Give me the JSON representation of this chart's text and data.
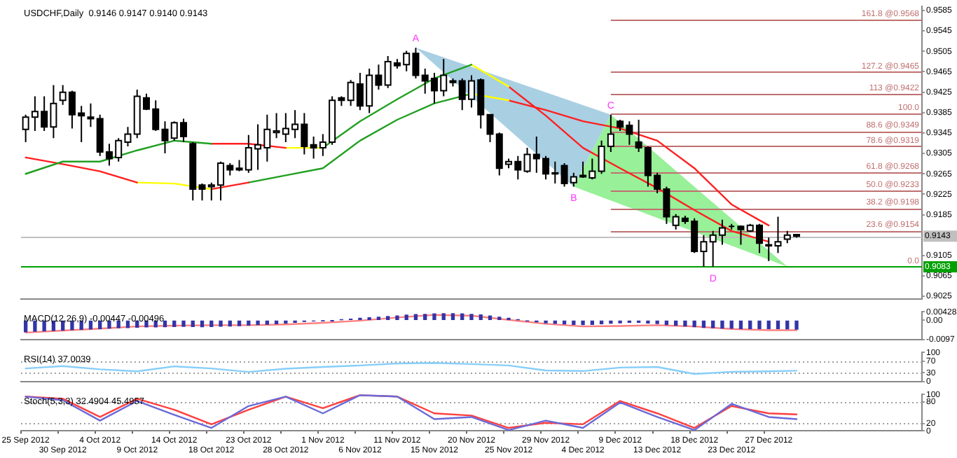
{
  "chart_data": [
    {
      "type": "candlestick",
      "title": "USDCHF,Daily  0.9146 0.9147 0.9140 0.9143",
      "tick_labels": "y",
      "categories": [
        "25 Sep 2012",
        null,
        null,
        null,
        "30 Sep 2012",
        null,
        null,
        null,
        "4 Oct 2012",
        null,
        null,
        null,
        "9 Oct 2012",
        null,
        null,
        null,
        "14 Oct 2012",
        null,
        null,
        null,
        "18 Oct 2012",
        null,
        null,
        null,
        "23 Oct 2012",
        null,
        null,
        null,
        "28 Oct 2012",
        null,
        null,
        null,
        "1 Nov 2012",
        null,
        null,
        null,
        "6 Nov 2012",
        null,
        null,
        null,
        "11 Nov 2012",
        null,
        null,
        null,
        "15 Nov 2012",
        null,
        null,
        null,
        "20 Nov 2012",
        null,
        null,
        null,
        "25 Nov 2012",
        null,
        null,
        null,
        "29 Nov 2012",
        null,
        null,
        null,
        "4 Dec 2012",
        null,
        null,
        null,
        "9 Dec 2012",
        null,
        null,
        null,
        "13 Dec 2012",
        null,
        null,
        null,
        "18 Dec 2012",
        null,
        null,
        null,
        "23 Dec 2012",
        null,
        null,
        null,
        "27 Dec 2012",
        null,
        null,
        null,
        null,
        null,
        null,
        null,
        null,
        null,
        null,
        null,
        null,
        null,
        null,
        null,
        null
      ],
      "ohlc": [
        [
          0.9352,
          0.9381,
          0.9327,
          0.9376
        ],
        [
          0.9376,
          0.9417,
          0.9349,
          0.9387
        ],
        [
          0.9387,
          0.9417,
          0.9349,
          0.9357
        ],
        [
          0.9357,
          0.9439,
          0.9335,
          0.9403
        ],
        [
          0.9409,
          0.9439,
          0.94,
          0.9425
        ],
        [
          0.9425,
          0.9428,
          0.9354,
          0.9381
        ],
        [
          0.9384,
          0.9398,
          0.9327,
          0.9379
        ],
        [
          0.9376,
          0.9403,
          0.9357,
          0.9373
        ],
        [
          0.9373,
          0.9381,
          0.93,
          0.9308
        ],
        [
          0.9308,
          0.9324,
          0.9281,
          0.9295
        ],
        [
          0.9297,
          0.9335,
          0.9289,
          0.933
        ],
        [
          0.9327,
          0.9357,
          0.9319,
          0.9343
        ],
        [
          0.9343,
          0.943,
          0.9335,
          0.9417
        ],
        [
          0.9414,
          0.9422,
          0.939,
          0.9392
        ],
        [
          0.9392,
          0.9409,
          0.9349,
          0.9352
        ],
        [
          0.9352,
          0.9368,
          0.9305,
          0.933
        ],
        [
          0.9335,
          0.9368,
          0.933,
          0.9365
        ],
        [
          0.9365,
          0.9373,
          0.9327,
          0.9338
        ],
        [
          0.9324,
          0.9327,
          0.9213,
          0.9235
        ],
        [
          0.9243,
          0.9246,
          0.9213,
          0.9235
        ],
        [
          0.924,
          0.9248,
          0.9213,
          0.9243
        ],
        [
          0.9243,
          0.9289,
          0.9213,
          0.9286
        ],
        [
          0.9281,
          0.9286,
          0.9262,
          0.9273
        ],
        [
          0.9276,
          0.9292,
          0.927,
          0.9273
        ],
        [
          0.9273,
          0.9341,
          0.9267,
          0.9316
        ],
        [
          0.9314,
          0.9362,
          0.9273,
          0.9322
        ],
        [
          0.9316,
          0.9381,
          0.9289,
          0.9352
        ],
        [
          0.9346,
          0.9384,
          0.9335,
          0.9349
        ],
        [
          0.9343,
          0.9384,
          0.9327,
          0.9354
        ],
        [
          0.9352,
          0.939,
          0.9335,
          0.9362
        ],
        [
          0.9362,
          0.9384,
          0.9303,
          0.9319
        ],
        [
          0.9322,
          0.9338,
          0.9295,
          0.9316
        ],
        [
          0.9316,
          0.9343,
          0.93,
          0.9327
        ],
        [
          0.9327,
          0.9417,
          0.9322,
          0.9409
        ],
        [
          0.9414,
          0.9417,
          0.9398,
          0.9409
        ],
        [
          0.9409,
          0.9449,
          0.9398,
          0.9444
        ],
        [
          0.9441,
          0.9463,
          0.939,
          0.9398
        ],
        [
          0.9398,
          0.9471,
          0.9384,
          0.9458
        ],
        [
          0.9458,
          0.9479,
          0.943,
          0.9439
        ],
        [
          0.9439,
          0.9496,
          0.9433,
          0.9485
        ],
        [
          0.9482,
          0.949,
          0.9471,
          0.9477
        ],
        [
          0.9479,
          0.9506,
          0.9466,
          0.9501
        ],
        [
          0.9501,
          0.9512,
          0.9452,
          0.9458
        ],
        [
          0.9458,
          0.9471,
          0.9422,
          0.9447
        ],
        [
          0.9452,
          0.9463,
          0.9403,
          0.9428
        ],
        [
          0.9428,
          0.949,
          0.9417,
          0.9458
        ],
        [
          0.9447,
          0.9452,
          0.9436,
          0.9444
        ],
        [
          0.9447,
          0.9452,
          0.939,
          0.9411
        ],
        [
          0.9411,
          0.9458,
          0.9395,
          0.9447
        ],
        [
          0.9449,
          0.9452,
          0.9354,
          0.9381
        ],
        [
          0.9381,
          0.9381,
          0.9327,
          0.9343
        ],
        [
          0.9343,
          0.9346,
          0.9262,
          0.9276
        ],
        [
          0.9284,
          0.9295,
          0.9276,
          0.9289
        ],
        [
          0.9289,
          0.93,
          0.9254,
          0.9273
        ],
        [
          0.927,
          0.9316,
          0.9267,
          0.9303
        ],
        [
          0.9303,
          0.9338,
          0.9267,
          0.9295
        ],
        [
          0.9295,
          0.93,
          0.9254,
          0.9265
        ],
        [
          0.9267,
          0.9289,
          0.9246,
          0.9265
        ],
        [
          0.9281,
          0.9286,
          0.924,
          0.9246
        ],
        [
          0.9248,
          0.9267,
          0.924,
          0.9259
        ],
        [
          0.9259,
          0.9289,
          0.9257,
          0.9262
        ],
        [
          0.9257,
          0.9295,
          0.9254,
          0.927
        ],
        [
          0.927,
          0.933,
          0.9265,
          0.9319
        ],
        [
          0.9319,
          0.9381,
          0.9308,
          0.9343
        ],
        [
          0.9368,
          0.9371,
          0.9349,
          0.9357
        ],
        [
          0.936,
          0.9368,
          0.9322,
          0.9343
        ],
        [
          0.9327,
          0.9371,
          0.9308,
          0.9316
        ],
        [
          0.9316,
          0.9319,
          0.924,
          0.9262
        ],
        [
          0.9262,
          0.9267,
          0.9227,
          0.9235
        ],
        [
          0.9235,
          0.924,
          0.9167,
          0.9181
        ],
        [
          0.9164,
          0.9186,
          0.9156,
          0.9181
        ],
        [
          0.9178,
          0.9183,
          0.9167,
          0.9172
        ],
        [
          0.9172,
          0.9178,
          0.911,
          0.9113
        ],
        [
          0.9113,
          0.9145,
          0.9083,
          0.9132
        ],
        [
          0.9132,
          0.9153,
          0.9083,
          0.9145
        ],
        [
          0.9145,
          0.9175,
          0.9126,
          0.9159
        ],
        [
          0.9162,
          0.9167,
          0.9156,
          0.9162
        ],
        [
          0.9162,
          0.9164,
          0.9126,
          0.9156
        ],
        [
          0.9153,
          0.9167,
          0.9151,
          0.9164
        ],
        [
          0.9164,
          0.9167,
          0.911,
          0.9129
        ],
        [
          0.9126,
          0.914,
          0.9094,
          0.9124
        ],
        [
          0.9124,
          0.9181,
          0.911,
          0.9132
        ],
        [
          0.9137,
          0.9153,
          0.9129,
          0.9145
        ],
        [
          0.9146,
          0.9147,
          0.914,
          0.9143
        ],
        null,
        null,
        null,
        null,
        null,
        null,
        null,
        null,
        null,
        null,
        null,
        null,
        null
      ],
      "series": [
        {
          "type": "line",
          "color": "#22a022",
          "x": [
            "25 Sep 2012",
            "30 Sep 2012",
            "4 Oct 2012",
            "9 Oct 2012",
            "14 Oct 2012",
            "18 Oct 2012"
          ],
          "values": [
            0.9265,
            0.9289,
            0.9289,
            0.9311,
            0.933,
            0.9324
          ]
        },
        {
          "type": "line",
          "color": "#ff2020",
          "x": [
            "18 Oct 2012",
            "23 Oct 2012",
            "28 Oct 2012"
          ],
          "values": [
            0.9324,
            0.9324,
            0.9316
          ]
        },
        {
          "type": "line",
          "color": "#ffff00",
          "x": [
            "28 Oct 2012",
            "1 Nov 2012"
          ],
          "values": [
            0.9316,
            0.9316
          ]
        },
        {
          "type": "line",
          "color": "#22a022",
          "x": [
            "1 Nov 2012",
            "6 Nov 2012",
            "11 Nov 2012",
            "15 Nov 2012",
            "20 Nov 2012"
          ],
          "values": [
            0.9316,
            0.9368,
            0.9411,
            0.9452,
            0.9479
          ]
        },
        {
          "type": "line",
          "color": "#ffff00",
          "x": [
            "20 Nov 2012",
            "25 Nov 2012"
          ],
          "values": [
            0.9479,
            0.9436
          ]
        },
        {
          "type": "line",
          "color": "#ff2020",
          "x": [
            "25 Nov 2012",
            "29 Nov 2012",
            "4 Dec 2012",
            "9 Dec 2012",
            "13 Dec 2012",
            "18 Dec 2012",
            "23 Dec 2012",
            "27 Dec 2012"
          ],
          "values": [
            0.9436,
            0.9379,
            0.9316,
            0.9276,
            0.9237,
            0.9194,
            0.9153,
            0.9132
          ]
        },
        {
          "type": "line",
          "color": "#ff2020",
          "x": [
            "25 Sep 2012",
            "30 Sep 2012",
            "4 Oct 2012",
            "9 Oct 2012"
          ],
          "values": [
            0.9297,
            0.9284,
            0.927,
            0.9248
          ]
        },
        {
          "type": "line",
          "color": "#ffff00",
          "x": [
            "9 Oct 2012",
            "14 Oct 2012",
            "18 Oct 2012"
          ],
          "values": [
            0.9248,
            0.9246,
            0.9235
          ]
        },
        {
          "type": "line",
          "color": "#ff2020",
          "x": [
            "18 Oct 2012",
            "23 Oct 2012"
          ],
          "values": [
            0.9235,
            0.9248
          ]
        },
        {
          "type": "line",
          "color": "#22a022",
          "x": [
            "23 Oct 2012",
            "28 Oct 2012",
            "1 Nov 2012",
            "6 Nov 2012",
            "11 Nov 2012",
            "15 Nov 2012",
            "20 Nov 2012"
          ],
          "values": [
            0.9248,
            0.9262,
            0.9276,
            0.933,
            0.9371,
            0.9403,
            0.9422
          ]
        },
        {
          "type": "line",
          "color": "#ffff00",
          "x": [
            "20 Nov 2012",
            "25 Nov 2012"
          ],
          "values": [
            0.9422,
            0.9409
          ]
        },
        {
          "type": "line",
          "color": "#ff2020",
          "x": [
            "25 Nov 2012",
            "29 Nov 2012",
            "4 Dec 2012",
            "9 Dec 2012",
            "13 Dec 2012",
            "18 Dec 2012",
            "23 Dec 2012",
            "27 Dec 2012"
          ],
          "values": [
            0.9409,
            0.939,
            0.9368,
            0.9354,
            0.933,
            0.9276,
            0.9205,
            0.9164
          ]
        }
      ],
      "ylim": [
        0.902,
        0.9593
      ],
      "yticks": [
        0.9585,
        0.9545,
        0.9505,
        0.9465,
        0.9425,
        0.9385,
        0.9345,
        0.9305,
        0.9265,
        0.9225,
        0.9185,
        0.9105,
        0.9065,
        0.9025
      ],
      "ref_lines": [
        {
          "axis": "y",
          "value": 0.9568,
          "label": "161.8 @0.9568",
          "color": "#c07070"
        },
        {
          "axis": "y",
          "value": 0.9465,
          "label": "127.2 @0.9465",
          "color": "#c07070"
        },
        {
          "axis": "y",
          "value": 0.9422,
          "label": "113 @0.9422",
          "color": "#c07070"
        },
        {
          "axis": "y",
          "value": 0.9384,
          "color": "#c07070"
        },
        {
          "axis": "y",
          "value": 0.9349,
          "label": "88.6 @0.9349",
          "color": "#c07070"
        },
        {
          "axis": "y",
          "value": 0.9319,
          "label": "78.6 @0.9319",
          "color": "#c07070"
        },
        {
          "axis": "y",
          "value": 0.9268,
          "label": "61.8 @0.9268",
          "color": "#c07070"
        },
        {
          "axis": "y",
          "value": 0.9233,
          "label": "50.0 @0.9233",
          "color": "#c07070"
        },
        {
          "axis": "y",
          "value": 0.9198,
          "label": "38.2 @0.9198",
          "color": "#c07070"
        },
        {
          "axis": "y",
          "value": 0.9154,
          "label": "23.6 @0.9154",
          "color": "#c07070"
        },
        {
          "axis": "y",
          "value": 0.9143,
          "label": "0.9143",
          "color": "#c0c0c0"
        },
        {
          "axis": "y",
          "value": 0.9083,
          "label": "0.9083",
          "color": "#00a000"
        }
      ],
      "annotations": [
        "A",
        "B",
        {
          "text": "C",
          "y": 0.9381
        },
        "D",
        {
          "text": "100.0",
          "y": 0.9384
        },
        {
          "text": "0.0",
          "y": 0.9083
        }
      ]
    },
    {
      "type": "bar",
      "title": "MACD(12,26,9) -0.00447 -0.00496",
      "tick_labels": "y",
      "categories": [
        "25 Sep 2012",
        null,
        null,
        null,
        "30 Sep 2012",
        null,
        null,
        null,
        "4 Oct 2012",
        null,
        null,
        null,
        "9 Oct 2012",
        null,
        null,
        null,
        "14 Oct 2012",
        null,
        null,
        null,
        "18 Oct 2012",
        null,
        null,
        null,
        "23 Oct 2012",
        null,
        null,
        null,
        "28 Oct 2012",
        null,
        null,
        null,
        "1 Nov 2012",
        null,
        null,
        null,
        "6 Nov 2012",
        null,
        null,
        null,
        "11 Nov 2012",
        null,
        null,
        null,
        "15 Nov 2012",
        null,
        null,
        null,
        "20 Nov 2012",
        null,
        null,
        null,
        "25 Nov 2012",
        null,
        null,
        null,
        "29 Nov 2012",
        null,
        null,
        null,
        "4 Dec 2012",
        null,
        null,
        null,
        "9 Dec 2012",
        null,
        null,
        null,
        "13 Dec 2012",
        null,
        null,
        null,
        "18 Dec 2012",
        null,
        null,
        null,
        "23 Dec 2012",
        null,
        null,
        null,
        "27 Dec 2012",
        null,
        null,
        null,
        null,
        null,
        null,
        null,
        null,
        null,
        null,
        null,
        null,
        null,
        null,
        null,
        null
      ],
      "series": [
        {
          "type": "bar",
          "color": "#3434a8",
          "values": [
            -0.0058,
            -0.0056,
            -0.0054,
            -0.0052,
            -0.005,
            -0.0048,
            -0.0046,
            -0.0044,
            -0.0042,
            -0.004,
            -0.0038,
            -0.0037,
            -0.0035,
            -0.0034,
            -0.0034,
            -0.0033,
            -0.0032,
            -0.0031,
            -0.0032,
            -0.0033,
            -0.0032,
            -0.003,
            -0.0029,
            -0.0027,
            -0.0025,
            -0.0022,
            -0.002,
            -0.0018,
            -0.0014,
            -0.0011,
            -0.0006,
            -0.0004,
            -0.0002,
            -0.0001,
            0.0003,
            0.0006,
            0.001,
            0.0013,
            0.0016,
            0.0019,
            0.0022,
            0.0026,
            0.0029,
            0.003,
            0.0032,
            0.0033,
            0.0033,
            0.0032,
            0.003,
            0.0027,
            0.0022,
            0.0016,
            0.001,
            0.0003,
            -0.0003,
            -0.0008,
            -0.0013,
            -0.0016,
            -0.0019,
            -0.0021,
            -0.0022,
            -0.0021,
            -0.0018,
            -0.0015,
            -0.0013,
            -0.0011,
            -0.0011,
            -0.0014,
            -0.0017,
            -0.0022,
            -0.0026,
            -0.0029,
            -0.0033,
            -0.0036,
            -0.0038,
            -0.004,
            -0.0041,
            -0.0042,
            -0.0042,
            -0.0042,
            -0.0042,
            -0.0042,
            -0.0043,
            -0.0045,
            null,
            null,
            null,
            null,
            null,
            null,
            null,
            null,
            null,
            null,
            null,
            null,
            null
          ]
        },
        {
          "type": "line",
          "color": "#ff8080",
          "values": [
            -0.0062,
            null,
            null,
            null,
            -0.0052,
            null,
            null,
            null,
            -0.0042,
            null,
            null,
            null,
            -0.0031,
            null,
            null,
            null,
            -0.0027,
            null,
            null,
            null,
            -0.0025,
            null,
            null,
            null,
            -0.0025,
            null,
            null,
            null,
            -0.0021,
            null,
            null,
            null,
            -0.0013,
            null,
            null,
            null,
            -0.0002,
            null,
            null,
            null,
            0.0014,
            null,
            null,
            null,
            0.0027,
            null,
            null,
            null,
            0.0023,
            null,
            null,
            null,
            0.0002,
            null,
            null,
            null,
            -0.0018,
            null,
            null,
            null,
            -0.0031,
            null,
            null,
            null,
            -0.0029,
            null,
            null,
            null,
            -0.0025,
            null,
            null,
            null,
            -0.0031,
            null,
            null,
            null,
            -0.0044,
            null,
            null,
            null,
            -0.005,
            null,
            null,
            -0.005,
            null,
            null,
            null,
            null,
            null,
            null,
            null,
            null,
            null,
            null,
            null,
            null,
            null
          ]
        }
      ],
      "ylim": [
        -0.0097,
        0.00428
      ],
      "yticks": [
        0.00428,
        {
          "value": 0,
          "label": "0.00"
        },
        -0.0097
      ]
    },
    {
      "type": "line",
      "title": "RSI(14) 37.0039",
      "tick_labels": "y",
      "categories": [
        "25 Sep 2012",
        null,
        null,
        null,
        "30 Sep 2012",
        null,
        null,
        null,
        "4 Oct 2012",
        null,
        null,
        null,
        "9 Oct 2012",
        null,
        null,
        null,
        "14 Oct 2012",
        null,
        null,
        null,
        "18 Oct 2012",
        null,
        null,
        null,
        "23 Oct 2012",
        null,
        null,
        null,
        "28 Oct 2012",
        null,
        null,
        null,
        "1 Nov 2012",
        null,
        null,
        null,
        "6 Nov 2012",
        null,
        null,
        null,
        "11 Nov 2012",
        null,
        null,
        null,
        "15 Nov 2012",
        null,
        null,
        null,
        "20 Nov 2012",
        null,
        null,
        null,
        "25 Nov 2012",
        null,
        null,
        null,
        "29 Nov 2012",
        null,
        null,
        null,
        "4 Dec 2012",
        null,
        null,
        null,
        "9 Dec 2012",
        null,
        null,
        null,
        "13 Dec 2012",
        null,
        null,
        null,
        "18 Dec 2012",
        null,
        null,
        null,
        "23 Dec 2012",
        null,
        null,
        null,
        "27 Dec 2012",
        null,
        null,
        null,
        null,
        null,
        null,
        null,
        null,
        null,
        null,
        null,
        null,
        null,
        null,
        null,
        null
      ],
      "series": [
        {
          "type": "line",
          "color": "#87cefa",
          "values": [
            45,
            null,
            null,
            null,
            53,
            null,
            null,
            null,
            42,
            null,
            null,
            null,
            35,
            null,
            null,
            null,
            52,
            null,
            null,
            null,
            45,
            null,
            null,
            null,
            33,
            null,
            null,
            null,
            44,
            null,
            null,
            null,
            50,
            null,
            null,
            null,
            55,
            null,
            null,
            null,
            62,
            null,
            null,
            null,
            64,
            null,
            null,
            null,
            60,
            null,
            null,
            null,
            55,
            null,
            null,
            null,
            38,
            null,
            null,
            null,
            36,
            null,
            null,
            null,
            48,
            null,
            null,
            null,
            50,
            null,
            null,
            null,
            26,
            null,
            null,
            null,
            33,
            null,
            null,
            null,
            35,
            null,
            null,
            37,
            null,
            null,
            null,
            null,
            null,
            null,
            null,
            null,
            null,
            null,
            null,
            null,
            null
          ]
        }
      ],
      "ylim": [
        0,
        100
      ],
      "yticks": [
        100,
        70,
        30,
        0
      ],
      "ref_lines": [
        {
          "axis": "y",
          "value": 70,
          "color": "#a0a0a0",
          "line_style": "dotted"
        },
        {
          "axis": "y",
          "value": 30,
          "color": "#a0a0a0",
          "line_style": "dotted"
        }
      ]
    },
    {
      "type": "line",
      "title": "Stoch(5,3,3) 32.4904 45.4957",
      "categories": [
        "25 Sep 2012",
        null,
        null,
        null,
        "30 Sep 2012",
        null,
        null,
        null,
        "4 Oct 2012",
        null,
        null,
        null,
        "9 Oct 2012",
        null,
        null,
        null,
        "14 Oct 2012",
        null,
        null,
        null,
        "18 Oct 2012",
        null,
        null,
        null,
        "23 Oct 2012",
        null,
        null,
        null,
        "28 Oct 2012",
        null,
        null,
        null,
        "1 Nov 2012",
        null,
        null,
        null,
        "6 Nov 2012",
        null,
        null,
        null,
        "11 Nov 2012",
        null,
        null,
        null,
        "15 Nov 2012",
        null,
        null,
        null,
        "20 Nov 2012",
        null,
        null,
        null,
        "25 Nov 2012",
        null,
        null,
        null,
        "29 Nov 2012",
        null,
        null,
        null,
        "4 Dec 2012",
        null,
        null,
        null,
        "9 Dec 2012",
        null,
        null,
        null,
        "13 Dec 2012",
        null,
        null,
        null,
        "18 Dec 2012",
        null,
        null,
        null,
        "23 Dec 2012",
        null,
        null,
        null,
        "27 Dec 2012",
        null,
        null,
        null,
        null,
        null,
        null,
        null,
        null,
        null,
        null,
        null,
        null,
        null,
        null,
        null,
        null
      ],
      "series": [
        {
          "type": "line",
          "color": "#6a6ad8",
          "values": [
            94,
            null,
            null,
            null,
            84,
            null,
            null,
            null,
            28,
            null,
            null,
            null,
            82,
            null,
            null,
            null,
            44,
            null,
            null,
            null,
            8,
            null,
            null,
            null,
            68,
            null,
            null,
            null,
            94,
            null,
            null,
            null,
            48,
            null,
            null,
            null,
            98,
            null,
            null,
            null,
            94,
            null,
            null,
            null,
            32,
            null,
            null,
            null,
            38,
            null,
            null,
            null,
            2,
            null,
            null,
            null,
            28,
            null,
            null,
            null,
            8,
            null,
            null,
            null,
            78,
            null,
            null,
            null,
            38,
            null,
            null,
            null,
            2,
            null,
            null,
            null,
            74,
            null,
            null,
            null,
            38,
            null,
            null,
            32,
            null,
            null,
            null,
            null,
            null,
            null,
            null,
            null,
            null,
            null,
            null,
            null,
            null
          ]
        },
        {
          "type": "line",
          "color": "#ff4040",
          "values": [
            94,
            null,
            null,
            null,
            88,
            null,
            null,
            null,
            38,
            null,
            null,
            null,
            88,
            null,
            null,
            null,
            58,
            null,
            null,
            null,
            18,
            null,
            null,
            null,
            58,
            null,
            null,
            null,
            94,
            null,
            null,
            null,
            62,
            null,
            null,
            null,
            98,
            null,
            null,
            null,
            94,
            null,
            null,
            null,
            48,
            null,
            null,
            null,
            42,
            null,
            null,
            null,
            8,
            null,
            null,
            null,
            22,
            null,
            null,
            null,
            18,
            null,
            null,
            null,
            82,
            null,
            null,
            null,
            48,
            null,
            null,
            null,
            8,
            null,
            null,
            null,
            68,
            null,
            null,
            null,
            48,
            null,
            null,
            45,
            null,
            null,
            null,
            null,
            null,
            null,
            null,
            null,
            null,
            null,
            null,
            null,
            null
          ]
        }
      ],
      "ylim": [
        0,
        100
      ],
      "yticks": [
        100,
        80,
        20,
        0
      ],
      "ref_lines": [
        {
          "axis": "y",
          "value": 80,
          "color": "#a0a0a0",
          "line_style": "dotted"
        },
        {
          "axis": "y",
          "value": 20,
          "color": "#a0a0a0",
          "line_style": "dotted"
        }
      ]
    }
  ]
}
